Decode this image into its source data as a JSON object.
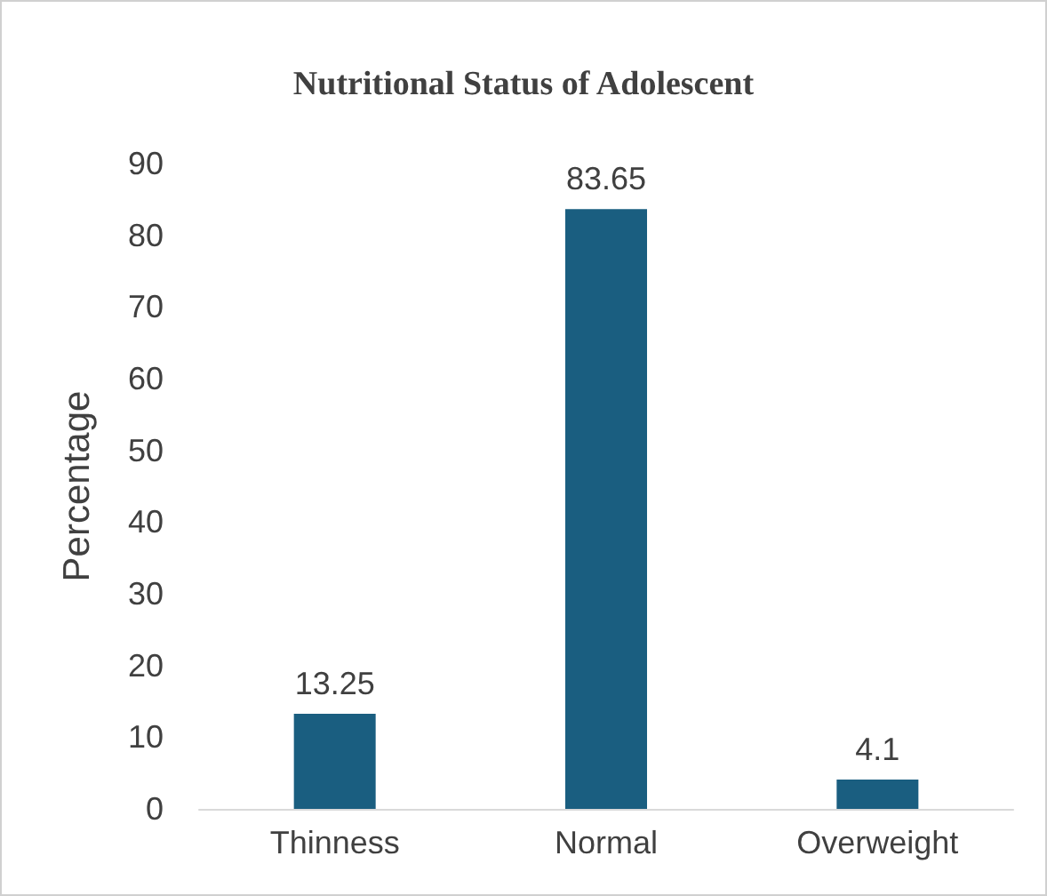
{
  "chart_data": {
    "type": "bar",
    "title": "Nutritional Status of Adolescent",
    "ylabel": "Percentage",
    "categories": [
      "Thinness",
      "Normal",
      "Overweight"
    ],
    "values": [
      13.25,
      83.65,
      4.1
    ],
    "color": "#1a5e80",
    "ylim": [
      0,
      90
    ],
    "yticks": [
      0,
      10,
      20,
      30,
      40,
      50,
      60,
      70,
      80,
      90
    ],
    "grid": false,
    "data_labels": true
  }
}
